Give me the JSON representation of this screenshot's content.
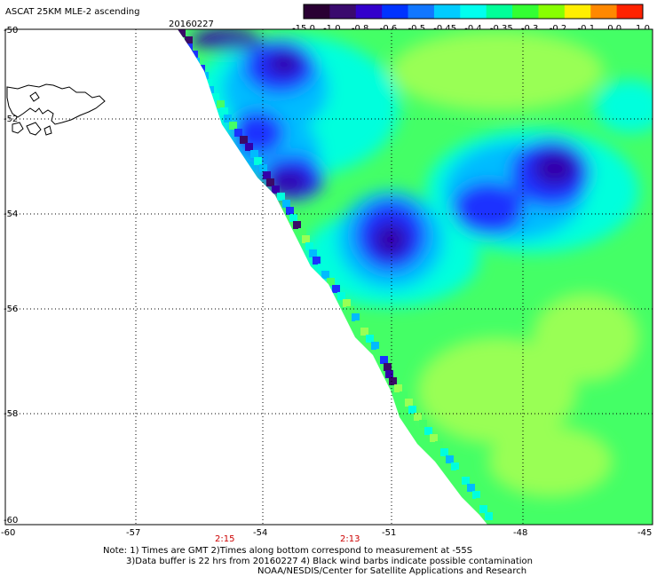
{
  "header": {
    "title": "ASCAT 25KM MLE-2 ascending",
    "date": "20160227"
  },
  "colorbar": {
    "ticks": [
      "-15.0",
      "-1.0",
      "-0.8",
      "-0.6",
      "-0.5",
      "-0.45",
      "-0.4",
      "-0.35",
      "-0.3",
      "-0.2",
      "-0.1",
      "0.0",
      "1.0"
    ],
    "colors": [
      "#2a0033",
      "#3a0a6e",
      "#3300cc",
      "#0033ff",
      "#1177ff",
      "#00ccff",
      "#00ffee",
      "#00ff99",
      "#33ff33",
      "#88ff00",
      "#ffee00",
      "#ff8800",
      "#ff2200"
    ]
  },
  "map": {
    "lat_ticks": [
      "-50",
      "-52",
      "-54",
      "-56",
      "-58",
      "-60"
    ],
    "lon_ticks": [
      "-60",
      "-57",
      "-54",
      "-51",
      "-48",
      "-45"
    ],
    "pass_times": [
      "2:15",
      "2:13"
    ],
    "colors": {
      "background": "#44ff66",
      "light_green": "#99ff55",
      "cyan": "#00ffdd",
      "light_blue": "#00bbff",
      "blue": "#1a33ff",
      "dark_blue": "#3300aa",
      "purple": "#3a0a66"
    },
    "features": [
      "land-outline",
      "swath-edge",
      "low-mle-blob"
    ]
  },
  "footer": {
    "note_line1": "Note: 1) Times are GMT 2)Times along bottom correspond to measurement at -55S",
    "note_line2": "3)Data buffer is 22 hrs from 20160227 4) Black wind barbs indicate possible contamination",
    "credit": "NOAA/NESDIS/Center for Satellite Applications and Research"
  }
}
